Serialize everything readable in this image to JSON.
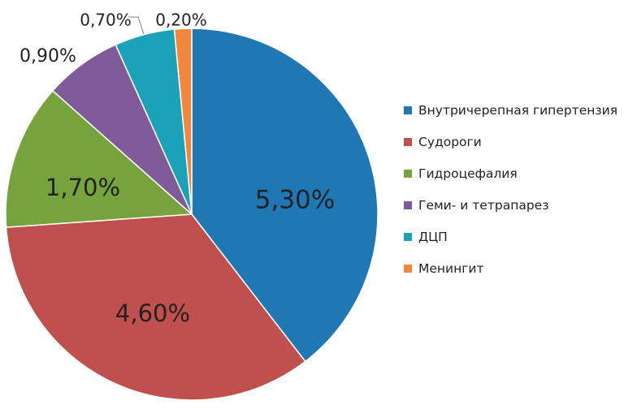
{
  "chart_data": {
    "type": "pie",
    "legend_position": "right",
    "slices": [
      {
        "label": "Внутричерепная гипертензия",
        "value": 5.3,
        "display": "5,30%",
        "color": "#1f77b4"
      },
      {
        "label": "Судороги",
        "value": 4.6,
        "display": "4,60%",
        "color": "#c0504d"
      },
      {
        "label": "Гидроцефалия",
        "value": 1.7,
        "display": "1,70%",
        "color": "#77a33c"
      },
      {
        "label": "Геми- и тетрапарез",
        "value": 0.9,
        "display": "0,90%",
        "color": "#7f5b9a"
      },
      {
        "label": "ДЦП",
        "value": 0.7,
        "display": "0,70%",
        "color": "#1ba1b8"
      },
      {
        "label": "Менингит",
        "value": 0.2,
        "display": "0,20%",
        "color": "#f0873a"
      }
    ]
  }
}
